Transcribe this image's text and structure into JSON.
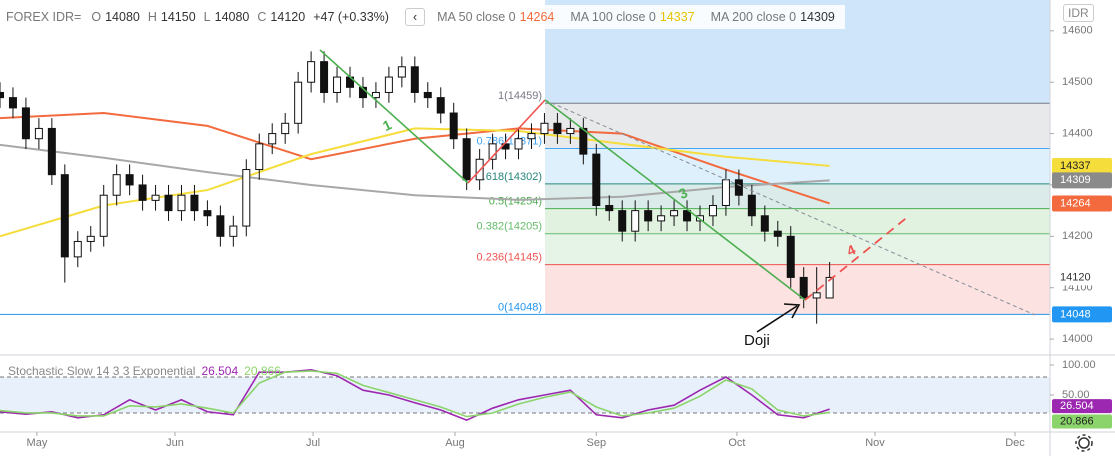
{
  "chart_data": [
    {
      "type": "candlestick",
      "symbol": "FOREX IDR=",
      "currency": "IDR",
      "ohlc_labels": [
        "O",
        "H",
        "L",
        "C"
      ],
      "change": "+47 (+0.33%)",
      "xlim": [
        0,
        162
      ],
      "xticks": [
        {
          "value": 5.7,
          "label": "May"
        },
        {
          "value": 27,
          "label": "Jun"
        },
        {
          "value": 48.3,
          "label": "Jul"
        },
        {
          "value": 70.2,
          "label": "Aug"
        },
        {
          "value": 92,
          "label": "Sep"
        },
        {
          "value": 113.7,
          "label": "Oct"
        },
        {
          "value": 135,
          "label": "Nov"
        },
        {
          "value": 156.6,
          "label": "Dec"
        }
      ],
      "ylim": [
        13969,
        14660
      ],
      "yticks": [
        14000,
        14100,
        14200,
        14300,
        14400,
        14500,
        14600
      ],
      "grid": false,
      "x": [
        0,
        2,
        4,
        6,
        8,
        10,
        12,
        14,
        16,
        18,
        20,
        22,
        24,
        26,
        28,
        30,
        32,
        34,
        36,
        38,
        40,
        42,
        44,
        46,
        48,
        50,
        52,
        54,
        56,
        58,
        60,
        62,
        64,
        66,
        68,
        70,
        72,
        74,
        76,
        78,
        80,
        82,
        84,
        86,
        88,
        90,
        92,
        94,
        96,
        98,
        100,
        102,
        104,
        106,
        108,
        110,
        112,
        114,
        116,
        118,
        120,
        122,
        124,
        126,
        128
      ],
      "open": [
        14480,
        14470,
        14450,
        14390,
        14410,
        14320,
        14160,
        14190,
        14200,
        14280,
        14320,
        14300,
        14270,
        14280,
        14250,
        14280,
        14250,
        14240,
        14200,
        14220,
        14330,
        14380,
        14400,
        14420,
        14500,
        14540,
        14480,
        14510,
        14490,
        14470,
        14480,
        14510,
        14530,
        14480,
        14470,
        14440,
        14390,
        14310,
        14350,
        14380,
        14370,
        14390,
        14400,
        14420,
        14400,
        14410,
        14360,
        14260,
        14250,
        14210,
        14250,
        14230,
        14240,
        14250,
        14230,
        14240,
        14260,
        14310,
        14280,
        14240,
        14210,
        14200,
        14120,
        14080,
        14080
      ],
      "high": [
        14500,
        14490,
        14470,
        14430,
        14430,
        14340,
        14210,
        14220,
        14300,
        14340,
        14340,
        14320,
        14300,
        14300,
        14300,
        14300,
        14270,
        14260,
        14240,
        14350,
        14400,
        14420,
        14440,
        14520,
        14560,
        14560,
        14530,
        14530,
        14510,
        14500,
        14530,
        14550,
        14550,
        14500,
        14490,
        14460,
        14410,
        14370,
        14400,
        14400,
        14410,
        14420,
        14440,
        14440,
        14430,
        14430,
        14380,
        14280,
        14270,
        14270,
        14270,
        14260,
        14270,
        14270,
        14260,
        14280,
        14330,
        14330,
        14300,
        14260,
        14230,
        14220,
        14140,
        14140,
        14150
      ],
      "low": [
        14450,
        14430,
        14370,
        14370,
        14300,
        14110,
        14140,
        14170,
        14180,
        14260,
        14280,
        14250,
        14250,
        14230,
        14230,
        14230,
        14220,
        14180,
        14180,
        14200,
        14310,
        14360,
        14380,
        14400,
        14480,
        14460,
        14460,
        14470,
        14450,
        14450,
        14460,
        14490,
        14460,
        14450,
        14420,
        14370,
        14290,
        14290,
        14330,
        14350,
        14350,
        14370,
        14380,
        14380,
        14380,
        14340,
        14240,
        14230,
        14190,
        14190,
        14210,
        14210,
        14220,
        14210,
        14210,
        14220,
        14240,
        14260,
        14220,
        14190,
        14180,
        14100,
        14060,
        14030,
        14080
      ],
      "close": [
        14470,
        14450,
        14390,
        14410,
        14320,
        14160,
        14190,
        14200,
        14280,
        14320,
        14300,
        14270,
        14280,
        14250,
        14280,
        14250,
        14240,
        14200,
        14220,
        14330,
        14380,
        14400,
        14420,
        14500,
        14540,
        14480,
        14510,
        14490,
        14470,
        14480,
        14510,
        14530,
        14480,
        14470,
        14440,
        14390,
        14310,
        14350,
        14380,
        14370,
        14390,
        14400,
        14420,
        14400,
        14410,
        14360,
        14260,
        14250,
        14210,
        14250,
        14230,
        14240,
        14250,
        14230,
        14240,
        14260,
        14310,
        14280,
        14240,
        14210,
        14200,
        14120,
        14080,
        14090,
        14120
      ],
      "series": [
        {
          "name": "MA 50 close 0",
          "color": "#f26a3d",
          "x": [
            0,
            16,
            32,
            48,
            64,
            80,
            96,
            112,
            128
          ],
          "values": [
            14430,
            14440,
            14415,
            14350,
            14390,
            14410,
            14400,
            14330,
            14264
          ]
        },
        {
          "name": "MA 100 close 0",
          "color": "#f5dd3c",
          "x": [
            0,
            16,
            32,
            48,
            64,
            80,
            96,
            112,
            128
          ],
          "values": [
            14200,
            14260,
            14290,
            14360,
            14410,
            14405,
            14380,
            14355,
            14337
          ]
        },
        {
          "name": "MA 200 close 0",
          "color": "#a8a8a8",
          "x": [
            0,
            16,
            32,
            48,
            64,
            80,
            96,
            112,
            128
          ],
          "values": [
            14378,
            14353,
            14325,
            14300,
            14280,
            14271,
            14277,
            14296,
            14309
          ]
        }
      ],
      "fib_levels": [
        {
          "label": "1(14459)",
          "value": 14459,
          "color": "#787b86"
        },
        {
          "label": "0.786(14371)",
          "value": 14371,
          "color": "#42a5f5"
        },
        {
          "label": "0.618(14302)",
          "value": 14302,
          "color": "#26867a"
        },
        {
          "label": "0.5(14254)",
          "value": 14254,
          "color": "#4caf50"
        },
        {
          "label": "0.382(14205)",
          "value": 14205,
          "color": "#66bb6a"
        },
        {
          "label": "0.236(14145)",
          "value": 14145,
          "color": "#ef5350"
        },
        {
          "label": "0(14048)",
          "value": 14048,
          "color": "#2196f3"
        }
      ],
      "annotations": [
        "1",
        "3",
        "4",
        "Doji"
      ]
    },
    {
      "type": "line",
      "title": "Stochastic Slow 14 3 3 Exponential",
      "ylim": [
        -11.7,
        113.3
      ],
      "yticks": [
        {
          "value": 100,
          "label": "100.00"
        },
        {
          "value": 50,
          "label": "50.00"
        }
      ],
      "levels": [
        80,
        20
      ],
      "x": [
        0,
        4,
        8,
        12,
        16,
        20,
        24,
        28,
        32,
        36,
        40,
        44,
        48,
        52,
        56,
        60,
        64,
        68,
        72,
        76,
        80,
        84,
        88,
        92,
        96,
        100,
        104,
        108,
        112,
        116,
        120,
        124,
        128
      ],
      "series": [
        {
          "color": "#9c27b0",
          "values": [
            22,
            18,
            22,
            12,
            17,
            42,
            25,
            42,
            22,
            17,
            88,
            88,
            92,
            82,
            58,
            50,
            37,
            25,
            8,
            28,
            42,
            50,
            58,
            17,
            12,
            25,
            33,
            58,
            80,
            50,
            17,
            12,
            26.504
          ],
          "value_labels": [
            null,
            null,
            null,
            null,
            null,
            null,
            null,
            null,
            null,
            null,
            null,
            null,
            null,
            null,
            null,
            null,
            null,
            null,
            null,
            null,
            null,
            null,
            null,
            null,
            null,
            null,
            null,
            null,
            null,
            null,
            null,
            null,
            "26.504"
          ]
        },
        {
          "color": "#8bd36b",
          "values": [
            24,
            20,
            20,
            15,
            15,
            32,
            30,
            35,
            28,
            20,
            70,
            88,
            90,
            86,
            66,
            54,
            42,
            30,
            14,
            20,
            35,
            46,
            55,
            30,
            15,
            20,
            28,
            48,
            75,
            60,
            25,
            15,
            20.866
          ],
          "value_labels": [
            null,
            null,
            null,
            null,
            null,
            null,
            null,
            null,
            null,
            null,
            null,
            null,
            null,
            null,
            null,
            null,
            null,
            null,
            null,
            null,
            null,
            null,
            null,
            null,
            null,
            null,
            null,
            null,
            null,
            null,
            null,
            null,
            "20.866"
          ]
        }
      ]
    }
  ]
}
